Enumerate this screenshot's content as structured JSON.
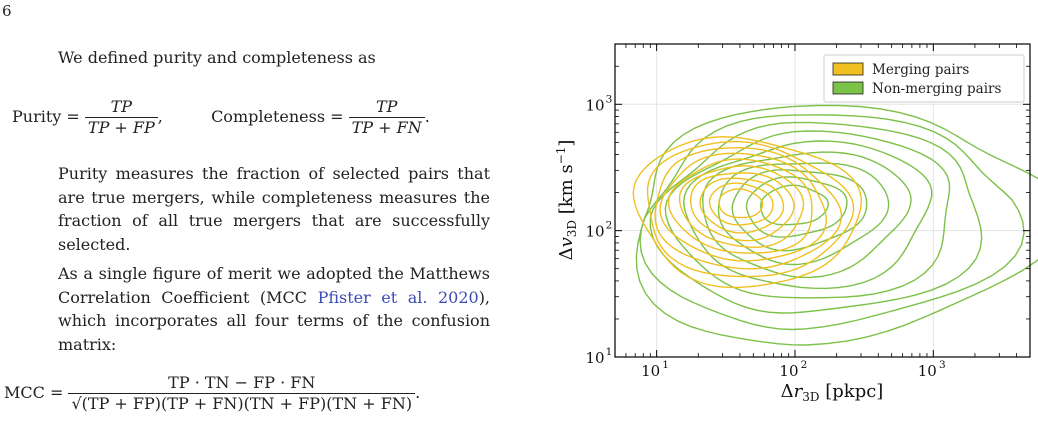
{
  "page": {
    "number": "6"
  },
  "text": {
    "intro": "We defined purity and completeness as",
    "purity_label": "Purity",
    "completeness_label": "Completeness",
    "purity_num": "TP",
    "purity_den": "TP + FP",
    "completeness_num": "TP",
    "completeness_den": "TP + FN",
    "comma": ",",
    "period": ".",
    "para1": "Purity measures the fraction of selected pairs that are true mergers, while completeness measures the fraction of all true mergers that are successfully selected.",
    "para2_start": "As a single figure of merit we adopted the Matthews Correlation Coefficient (MCC ",
    "para2_cite": "Pfister et al. 2020",
    "para2_end": "), which incorporates all four terms of the confusion matrix:",
    "mcc_label": "MCC",
    "mcc_num": "TP · TN − FP · FN",
    "mcc_den": "(TP + FP)(TP + FN)(TN + FP)(TN + FN)"
  },
  "chart_data": {
    "type": "contour",
    "xlabel": "Δr3D [pkpc]",
    "ylabel": "Δv3D [km s−1]",
    "x_scale": "log",
    "y_scale": "log",
    "xlim": [
      5,
      5000
    ],
    "ylim": [
      10,
      3000
    ],
    "x_ticks": [
      {
        "value": 10,
        "label": "10",
        "exp": "1"
      },
      {
        "value": 100,
        "label": "10",
        "exp": "2"
      },
      {
        "value": 1000,
        "label": "10",
        "exp": "3"
      }
    ],
    "y_ticks": [
      {
        "value": 10,
        "label": "10",
        "exp": "1"
      },
      {
        "value": 100,
        "label": "10",
        "exp": "2"
      },
      {
        "value": 1000,
        "label": "10",
        "exp": "3"
      }
    ],
    "grid": true,
    "legend_position": "top-right",
    "series": [
      {
        "name": "Merging pairs",
        "color": "#f0c020",
        "center": [
          40,
          165
        ],
        "levels": 10
      },
      {
        "name": "Non-merging pairs",
        "color": "#7cc148",
        "center": [
          95,
          160
        ],
        "levels": 10
      }
    ]
  }
}
